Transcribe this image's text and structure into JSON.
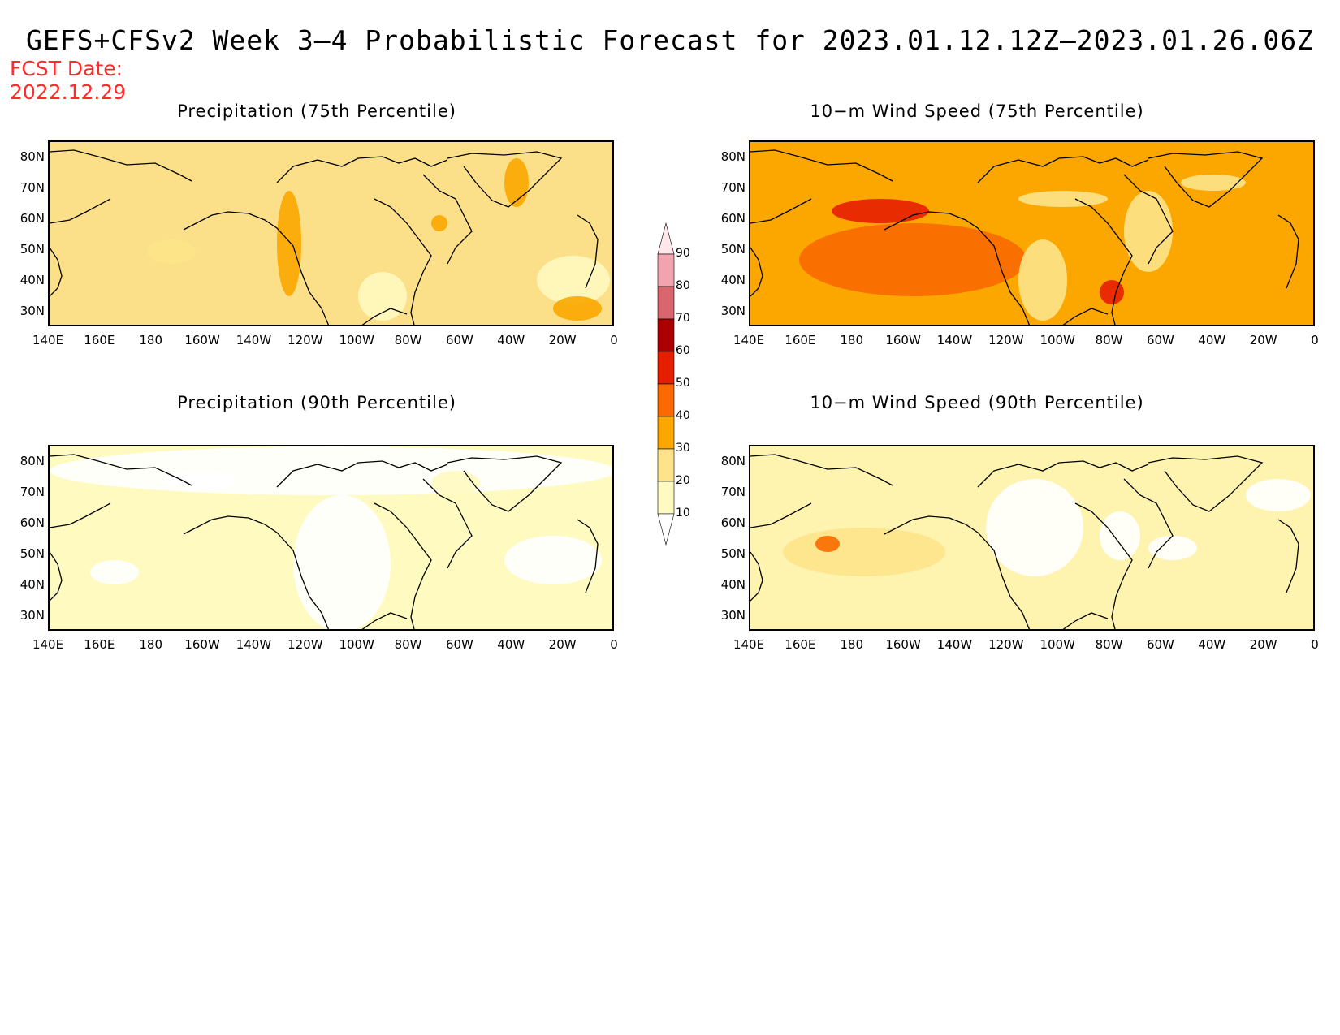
{
  "header": {
    "title": "GEFS+CFSv2 Week 3–4 Probabilistic Forecast for 2023.01.12.12Z–2023.01.26.06Z",
    "fcst_label": "FCST Date:",
    "fcst_date": "2022.12.29"
  },
  "panels": [
    {
      "title": "Precipitation (75th Percentile)",
      "base_color": "#fbe089"
    },
    {
      "title": "10−m Wind Speed (75th Percentile)",
      "base_color": "#fba700"
    },
    {
      "title": "Precipitation (90th Percentile)",
      "base_color": "#fffac0"
    },
    {
      "title": "10−m Wind Speed (90th Percentile)",
      "base_color": "#fff3b0"
    }
  ],
  "axes": {
    "lat_labels": [
      "80N",
      "70N",
      "60N",
      "50N",
      "40N",
      "30N"
    ],
    "lon_labels": [
      "140E",
      "160E",
      "180",
      "160W",
      "140W",
      "120W",
      "100W",
      "80W",
      "60W",
      "40W",
      "20W",
      "0"
    ]
  },
  "colorbar": {
    "levels": [
      "10",
      "20",
      "30",
      "40",
      "50",
      "60",
      "70",
      "80",
      "90"
    ],
    "colors": [
      "#ffffff",
      "#fffac0",
      "#fde48a",
      "#fba700",
      "#fa6a00",
      "#e61e00",
      "#aa0000",
      "#d9666e",
      "#f2a3ae",
      "#ffe7ea"
    ]
  }
}
